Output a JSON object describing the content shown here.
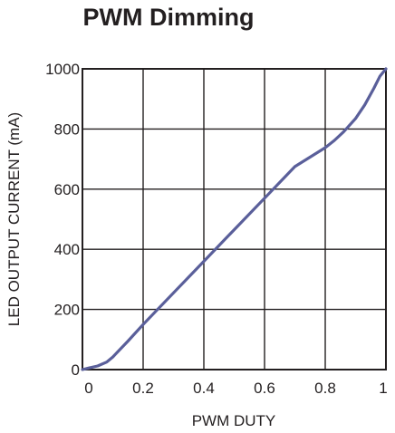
{
  "chart_data": {
    "type": "line",
    "title": "PWM Dimming",
    "xlabel": "PWM DUTY",
    "ylabel": "LED OUTPUT CURRENT (mA)",
    "xlim": [
      0,
      1
    ],
    "ylim": [
      0,
      1000
    ],
    "x_ticks": [
      "0",
      "0.2",
      "0.4",
      "0.6",
      "0.8",
      "1"
    ],
    "y_ticks": [
      "0",
      "200",
      "400",
      "600",
      "800",
      "1000"
    ],
    "grid": true,
    "series": [
      {
        "color": "#5a5f9a",
        "points": [
          [
            0.0,
            0
          ],
          [
            0.02,
            5
          ],
          [
            0.05,
            12
          ],
          [
            0.08,
            25
          ],
          [
            0.1,
            42
          ],
          [
            0.15,
            95
          ],
          [
            0.2,
            150
          ],
          [
            0.3,
            255
          ],
          [
            0.4,
            360
          ],
          [
            0.5,
            465
          ],
          [
            0.6,
            570
          ],
          [
            0.7,
            675
          ],
          [
            0.8,
            738
          ],
          [
            0.83,
            762
          ],
          [
            0.86,
            790
          ],
          [
            0.9,
            835
          ],
          [
            0.93,
            880
          ],
          [
            0.96,
            935
          ],
          [
            0.98,
            975
          ],
          [
            1.0,
            1000
          ]
        ]
      }
    ]
  }
}
